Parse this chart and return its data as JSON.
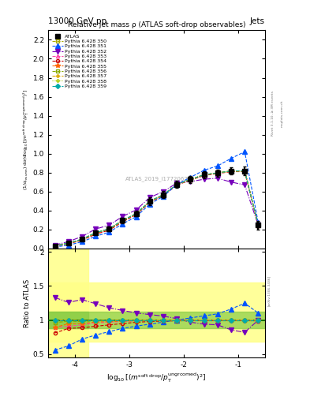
{
  "title_main": "13000 GeV pp",
  "title_right": "Jets",
  "plot_title": "Relative jet mass ρ (ATLAS soft-drop observables)",
  "watermark": "ATLAS_2019_I1772062",
  "xlabel": "log$_{10}$[(m$^{\\mathrm{soft\\,drop}}$/p$_\\mathrm{T}^{\\mathrm{ungroomed}}$)$^2$]",
  "ylabel_ratio": "Ratio to ATLAS",
  "xlim": [
    -4.5,
    -0.5
  ],
  "ylim_main": [
    0.0,
    2.3
  ],
  "ylim_ratio": [
    0.45,
    2.05
  ],
  "x_ticks": [
    -4,
    -3,
    -2,
    -1
  ],
  "series": [
    {
      "label": "ATLAS",
      "x": [
        -4.375,
        -4.125,
        -3.875,
        -3.625,
        -3.375,
        -3.125,
        -2.875,
        -2.625,
        -2.375,
        -2.125,
        -1.875,
        -1.625,
        -1.375,
        -1.125,
        -0.875,
        -0.625
      ],
      "y": [
        0.027,
        0.057,
        0.097,
        0.165,
        0.207,
        0.296,
        0.368,
        0.498,
        0.567,
        0.676,
        0.727,
        0.777,
        0.797,
        0.817,
        0.817,
        0.245
      ],
      "yerr": [
        0.008,
        0.009,
        0.013,
        0.018,
        0.022,
        0.027,
        0.028,
        0.038,
        0.037,
        0.037,
        0.037,
        0.037,
        0.037,
        0.037,
        0.045,
        0.045
      ],
      "color": "#000000",
      "marker": "s",
      "markersize": 4,
      "linestyle": "none",
      "fillstyle": "full",
      "zorder": 10
    },
    {
      "label": "Pythia 6.428 350",
      "x": [
        -4.375,
        -4.125,
        -3.875,
        -3.625,
        -3.375,
        -3.125,
        -2.875,
        -2.625,
        -2.375,
        -2.125,
        -1.875,
        -1.625,
        -1.375,
        -1.125,
        -0.875,
        -0.625
      ],
      "y": [
        0.027,
        0.057,
        0.097,
        0.165,
        0.207,
        0.296,
        0.368,
        0.498,
        0.567,
        0.676,
        0.727,
        0.777,
        0.797,
        0.817,
        0.817,
        0.245
      ],
      "color": "#aaaa00",
      "marker": "s",
      "markersize": 3,
      "linestyle": "--",
      "fillstyle": "none",
      "zorder": 5
    },
    {
      "label": "Pythia 6.428 351",
      "x": [
        -4.375,
        -4.125,
        -3.875,
        -3.625,
        -3.375,
        -3.125,
        -2.875,
        -2.625,
        -2.375,
        -2.125,
        -1.875,
        -1.625,
        -1.375,
        -1.125,
        -0.875,
        -0.625
      ],
      "y": [
        0.015,
        0.035,
        0.07,
        0.128,
        0.172,
        0.26,
        0.335,
        0.468,
        0.55,
        0.676,
        0.75,
        0.825,
        0.87,
        0.95,
        1.02,
        0.27
      ],
      "color": "#0055ff",
      "marker": "^",
      "markersize": 4,
      "linestyle": "--",
      "fillstyle": "full",
      "zorder": 6
    },
    {
      "label": "Pythia 6.428 352",
      "x": [
        -4.375,
        -4.125,
        -3.875,
        -3.625,
        -3.375,
        -3.125,
        -2.875,
        -2.625,
        -2.375,
        -2.125,
        -1.875,
        -1.625,
        -1.375,
        -1.125,
        -0.875,
        -0.625
      ],
      "y": [
        0.036,
        0.072,
        0.126,
        0.205,
        0.245,
        0.338,
        0.407,
        0.538,
        0.6,
        0.69,
        0.705,
        0.73,
        0.74,
        0.7,
        0.67,
        0.245
      ],
      "color": "#7700bb",
      "marker": "v",
      "markersize": 4,
      "linestyle": "-.",
      "fillstyle": "full",
      "zorder": 5
    },
    {
      "label": "Pythia 6.428 353",
      "x": [
        -4.375,
        -4.125,
        -3.875,
        -3.625,
        -3.375,
        -3.125,
        -2.875,
        -2.625,
        -2.375,
        -2.125,
        -1.875,
        -1.625,
        -1.375,
        -1.125,
        -0.875,
        -0.625
      ],
      "y": [
        0.024,
        0.052,
        0.09,
        0.158,
        0.2,
        0.29,
        0.363,
        0.493,
        0.562,
        0.672,
        0.723,
        0.773,
        0.793,
        0.813,
        0.813,
        0.242
      ],
      "color": "#ff44aa",
      "marker": "^",
      "markersize": 3,
      "linestyle": "--",
      "fillstyle": "none",
      "zorder": 5
    },
    {
      "label": "Pythia 6.428 354",
      "x": [
        -4.375,
        -4.125,
        -3.875,
        -3.625,
        -3.375,
        -3.125,
        -2.875,
        -2.625,
        -2.375,
        -2.125,
        -1.875,
        -1.625,
        -1.375,
        -1.125,
        -0.875,
        -0.625
      ],
      "y": [
        0.022,
        0.05,
        0.086,
        0.15,
        0.192,
        0.281,
        0.356,
        0.487,
        0.558,
        0.669,
        0.72,
        0.77,
        0.79,
        0.81,
        0.81,
        0.242
      ],
      "color": "#cc0000",
      "marker": "o",
      "markersize": 3,
      "linestyle": "--",
      "fillstyle": "none",
      "zorder": 5
    },
    {
      "label": "Pythia 6.428 355",
      "x": [
        -4.375,
        -4.125,
        -3.875,
        -3.625,
        -3.375,
        -3.125,
        -2.875,
        -2.625,
        -2.375,
        -2.125,
        -1.875,
        -1.625,
        -1.375,
        -1.125,
        -0.875,
        -0.625
      ],
      "y": [
        0.024,
        0.054,
        0.092,
        0.16,
        0.202,
        0.291,
        0.364,
        0.494,
        0.563,
        0.673,
        0.724,
        0.774,
        0.794,
        0.814,
        0.814,
        0.243
      ],
      "color": "#ff6600",
      "marker": "*",
      "markersize": 4,
      "linestyle": "--",
      "fillstyle": "full",
      "zorder": 5
    },
    {
      "label": "Pythia 6.428 356",
      "x": [
        -4.375,
        -4.125,
        -3.875,
        -3.625,
        -3.375,
        -3.125,
        -2.875,
        -2.625,
        -2.375,
        -2.125,
        -1.875,
        -1.625,
        -1.375,
        -1.125,
        -0.875,
        -0.625
      ],
      "y": [
        0.026,
        0.056,
        0.095,
        0.163,
        0.205,
        0.294,
        0.366,
        0.496,
        0.565,
        0.675,
        0.726,
        0.776,
        0.796,
        0.816,
        0.816,
        0.244
      ],
      "color": "#88aa00",
      "marker": "s",
      "markersize": 3,
      "linestyle": "--",
      "fillstyle": "none",
      "zorder": 5
    },
    {
      "label": "Pythia 6.428 357",
      "x": [
        -4.375,
        -4.125,
        -3.875,
        -3.625,
        -3.375,
        -3.125,
        -2.875,
        -2.625,
        -2.375,
        -2.125,
        -1.875,
        -1.625,
        -1.375,
        -1.125,
        -0.875,
        -0.625
      ],
      "y": [
        0.027,
        0.057,
        0.096,
        0.164,
        0.206,
        0.295,
        0.367,
        0.497,
        0.566,
        0.676,
        0.727,
        0.777,
        0.797,
        0.817,
        0.817,
        0.244
      ],
      "color": "#ddaa00",
      "marker": "D",
      "markersize": 2,
      "linestyle": "--",
      "fillstyle": "none",
      "zorder": 5
    },
    {
      "label": "Pythia 6.428 358",
      "x": [
        -4.375,
        -4.125,
        -3.875,
        -3.625,
        -3.375,
        -3.125,
        -2.875,
        -2.625,
        -2.375,
        -2.125,
        -1.875,
        -1.625,
        -1.375,
        -1.125,
        -0.875,
        -0.625
      ],
      "y": [
        0.027,
        0.057,
        0.097,
        0.165,
        0.207,
        0.296,
        0.368,
        0.498,
        0.567,
        0.677,
        0.728,
        0.778,
        0.798,
        0.818,
        0.818,
        0.245
      ],
      "color": "#aacc00",
      "marker": "D",
      "markersize": 2,
      "linestyle": ":",
      "fillstyle": "none",
      "zorder": 5
    },
    {
      "label": "Pythia 6.428 359",
      "x": [
        -4.375,
        -4.125,
        -3.875,
        -3.625,
        -3.375,
        -3.125,
        -2.875,
        -2.625,
        -2.375,
        -2.125,
        -1.875,
        -1.625,
        -1.375,
        -1.125,
        -0.875,
        -0.625
      ],
      "y": [
        0.027,
        0.057,
        0.097,
        0.165,
        0.207,
        0.296,
        0.368,
        0.498,
        0.567,
        0.676,
        0.727,
        0.777,
        0.797,
        0.817,
        0.817,
        0.245
      ],
      "color": "#00aaaa",
      "marker": "D",
      "markersize": 3,
      "linestyle": "--",
      "fillstyle": "full",
      "zorder": 5
    }
  ],
  "ratio_series": [
    {
      "label": "Pythia 6.428 350",
      "x": [
        -4.375,
        -4.125,
        -3.875,
        -3.625,
        -3.375,
        -3.125,
        -2.875,
        -2.625,
        -2.375,
        -2.125,
        -1.875,
        -1.625,
        -1.375,
        -1.125,
        -0.875,
        -0.625
      ],
      "y": [
        1.0,
        1.0,
        1.0,
        1.0,
        1.0,
        1.0,
        1.0,
        1.0,
        1.0,
        1.0,
        1.0,
        1.0,
        1.0,
        1.0,
        1.0,
        1.0
      ],
      "color": "#aaaa00",
      "marker": "s",
      "markersize": 3,
      "linestyle": "--",
      "fillstyle": "none"
    },
    {
      "label": "Pythia 6.428 351",
      "x": [
        -4.375,
        -4.125,
        -3.875,
        -3.625,
        -3.375,
        -3.125,
        -2.875,
        -2.625,
        -2.375,
        -2.125,
        -1.875,
        -1.625,
        -1.375,
        -1.125,
        -0.875,
        -0.625
      ],
      "y": [
        0.56,
        0.62,
        0.72,
        0.78,
        0.83,
        0.878,
        0.91,
        0.94,
        0.97,
        1.0,
        1.031,
        1.062,
        1.091,
        1.162,
        1.247,
        1.102
      ],
      "color": "#0055ff",
      "marker": "^",
      "markersize": 4,
      "linestyle": "--",
      "fillstyle": "full"
    },
    {
      "label": "Pythia 6.428 352",
      "x": [
        -4.375,
        -4.125,
        -3.875,
        -3.625,
        -3.375,
        -3.125,
        -2.875,
        -2.625,
        -2.375,
        -2.125,
        -1.875,
        -1.625,
        -1.375,
        -1.125,
        -0.875,
        -0.625
      ],
      "y": [
        1.33,
        1.26,
        1.3,
        1.24,
        1.18,
        1.14,
        1.105,
        1.08,
        1.058,
        1.02,
        0.969,
        0.94,
        0.929,
        0.856,
        0.819,
        1.0
      ],
      "color": "#7700bb",
      "marker": "v",
      "markersize": 4,
      "linestyle": "-.",
      "fillstyle": "full"
    },
    {
      "label": "Pythia 6.428 353",
      "x": [
        -4.375,
        -4.125,
        -3.875,
        -3.625,
        -3.375,
        -3.125,
        -2.875,
        -2.625,
        -2.375,
        -2.125,
        -1.875,
        -1.625,
        -1.375,
        -1.125,
        -0.875,
        -0.625
      ],
      "y": [
        0.89,
        0.91,
        0.928,
        0.958,
        0.966,
        0.98,
        0.987,
        0.99,
        0.991,
        0.994,
        0.994,
        0.995,
        0.995,
        0.995,
        0.995,
        0.988
      ],
      "color": "#ff44aa",
      "marker": "^",
      "markersize": 3,
      "linestyle": "--",
      "fillstyle": "none"
    },
    {
      "label": "Pythia 6.428 354",
      "x": [
        -4.375,
        -4.125,
        -3.875,
        -3.625,
        -3.375,
        -3.125,
        -2.875,
        -2.625,
        -2.375,
        -2.125,
        -1.875,
        -1.625,
        -1.375,
        -1.125,
        -0.875,
        -0.625
      ],
      "y": [
        0.81,
        0.877,
        0.887,
        0.909,
        0.928,
        0.949,
        0.967,
        0.978,
        0.984,
        0.989,
        0.99,
        0.991,
        0.991,
        0.991,
        0.991,
        0.988
      ],
      "color": "#cc0000",
      "marker": "o",
      "markersize": 3,
      "linestyle": "--",
      "fillstyle": "none"
    },
    {
      "label": "Pythia 6.428 355",
      "x": [
        -4.375,
        -4.125,
        -3.875,
        -3.625,
        -3.375,
        -3.125,
        -2.875,
        -2.625,
        -2.375,
        -2.125,
        -1.875,
        -1.625,
        -1.375,
        -1.125,
        -0.875,
        -0.625
      ],
      "y": [
        0.89,
        0.947,
        0.948,
        0.97,
        0.976,
        0.983,
        0.989,
        0.992,
        0.993,
        0.996,
        0.996,
        0.996,
        0.997,
        0.996,
        0.996,
        0.992
      ],
      "color": "#ff6600",
      "marker": "*",
      "markersize": 4,
      "linestyle": "--",
      "fillstyle": "full"
    },
    {
      "label": "Pythia 6.428 356",
      "x": [
        -4.375,
        -4.125,
        -3.875,
        -3.625,
        -3.375,
        -3.125,
        -2.875,
        -2.625,
        -2.375,
        -2.125,
        -1.875,
        -1.625,
        -1.375,
        -1.125,
        -0.875,
        -0.625
      ],
      "y": [
        0.963,
        0.982,
        0.979,
        0.988,
        0.99,
        0.993,
        0.995,
        0.996,
        0.996,
        0.998,
        0.998,
        0.999,
        0.999,
        0.998,
        0.999,
        0.996
      ],
      "color": "#88aa00",
      "marker": "s",
      "markersize": 3,
      "linestyle": "--",
      "fillstyle": "none"
    },
    {
      "label": "Pythia 6.428 357",
      "x": [
        -4.375,
        -4.125,
        -3.875,
        -3.625,
        -3.375,
        -3.125,
        -2.875,
        -2.625,
        -2.375,
        -2.125,
        -1.875,
        -1.625,
        -1.375,
        -1.125,
        -0.875,
        -0.625
      ],
      "y": [
        1.0,
        1.0,
        0.99,
        0.994,
        0.995,
        0.997,
        0.998,
        0.998,
        0.999,
        0.999,
        0.999,
        1.0,
        1.0,
        1.0,
        1.0,
        0.998
      ],
      "color": "#ddaa00",
      "marker": "D",
      "markersize": 2,
      "linestyle": "--",
      "fillstyle": "none"
    },
    {
      "label": "Pythia 6.428 358",
      "x": [
        -4.375,
        -4.125,
        -3.875,
        -3.625,
        -3.375,
        -3.125,
        -2.875,
        -2.625,
        -2.375,
        -2.125,
        -1.875,
        -1.625,
        -1.375,
        -1.125,
        -0.875,
        -0.625
      ],
      "y": [
        1.0,
        1.0,
        1.0,
        1.0,
        1.0,
        1.0,
        1.0,
        1.0,
        1.0,
        1.0,
        1.0,
        1.0,
        1.0,
        1.0,
        1.0,
        1.0
      ],
      "color": "#aacc00",
      "marker": "D",
      "markersize": 2,
      "linestyle": ":",
      "fillstyle": "none"
    },
    {
      "label": "Pythia 6.428 359",
      "x": [
        -4.375,
        -4.125,
        -3.875,
        -3.625,
        -3.375,
        -3.125,
        -2.875,
        -2.625,
        -2.375,
        -2.125,
        -1.875,
        -1.625,
        -1.375,
        -1.125,
        -0.875,
        -0.625
      ],
      "y": [
        1.0,
        1.0,
        1.0,
        1.0,
        1.0,
        1.0,
        1.0,
        1.0,
        1.0,
        1.0,
        1.0,
        1.0,
        1.0,
        1.0,
        1.0,
        1.0
      ],
      "color": "#00aaaa",
      "marker": "D",
      "markersize": 3,
      "linestyle": "--",
      "fillstyle": "full"
    }
  ],
  "ratio_ylim": [
    0.45,
    2.05
  ],
  "ratio_yticks": [
    0.5,
    1.0,
    1.5,
    2.0
  ],
  "ratio_yticklabels": [
    "0.5",
    "1",
    "1.5",
    "2"
  ],
  "band_yellow_lo": 0.68,
  "band_yellow_hi": 1.55,
  "band_yellow_x_end": -3.75,
  "band_green_lo": 0.88,
  "band_green_hi": 1.12,
  "main_yticks": [
    0.0,
    0.2,
    0.4,
    0.6,
    0.8,
    1.0,
    1.2,
    1.4,
    1.6,
    1.8,
    2.0,
    2.2
  ]
}
